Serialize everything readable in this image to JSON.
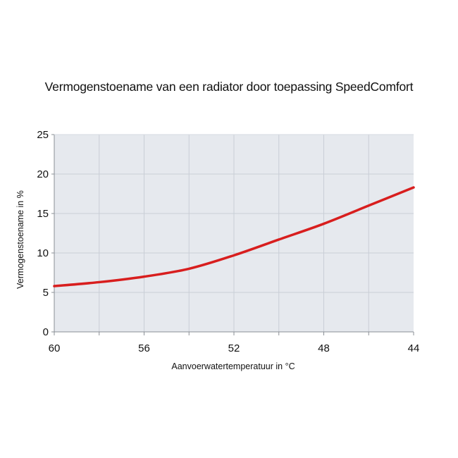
{
  "chart_data": {
    "type": "line",
    "title": "Vermogenstoename van een radiator door toepassing SpeedComfort",
    "xlabel": "Aanvoerwatertemperatuur in °C",
    "ylabel": "Vermogenstoename in %",
    "x": [
      60,
      58,
      56,
      54,
      52,
      50,
      48,
      46,
      44
    ],
    "series": [
      {
        "name": "Vermogenstoename",
        "color": "#d81e1e",
        "values": [
          5.8,
          6.3,
          7.0,
          8.0,
          9.7,
          11.7,
          13.7,
          16.0,
          18.3
        ]
      }
    ],
    "xlim": [
      60,
      44
    ],
    "ylim": [
      0,
      25
    ],
    "x_reversed": true,
    "x_ticks": [
      60,
      56,
      52,
      48,
      44
    ],
    "x_minor_ticks": [
      58,
      54,
      50,
      46
    ],
    "y_ticks": [
      0,
      5,
      10,
      15,
      20,
      25
    ],
    "grid": true,
    "legend": null,
    "plot_background": "#e6e9ee",
    "grid_color": "#c9ced6"
  }
}
